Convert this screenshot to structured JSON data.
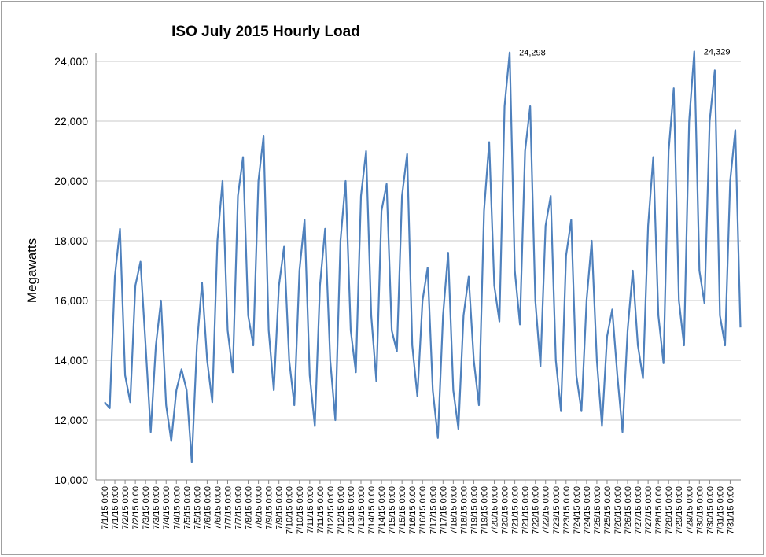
{
  "chart_data": {
    "type": "line",
    "title": "ISO July 2015 Hourly Load",
    "y_label": "Megawatts",
    "categories": [
      "7/1/15 0:00",
      null,
      "7/1/15 0:00",
      null,
      "7/2/15 0:00",
      null,
      "7/2/15 0:00",
      null,
      "7/3/15 0:00",
      null,
      "7/3/15 0:00",
      null,
      "7/4/15 0:00",
      null,
      "7/4/15 0:00",
      null,
      "7/5/15 0:00",
      null,
      "7/5/15 0:00",
      null,
      "7/6/15 0:00",
      null,
      "7/6/15 0:00",
      null,
      "7/7/15 0:00",
      null,
      "7/7/15 0:00",
      null,
      "7/8/15 0:00",
      null,
      "7/8/15 0:00",
      null,
      "7/9/15 0:00",
      null,
      "7/9/15 0:00",
      null,
      "7/10/15 0:00",
      null,
      "7/10/15 0:00",
      null,
      "7/11/15 0:00",
      null,
      "7/11/15 0:00",
      null,
      "7/12/15 0:00",
      null,
      "7/12/15 0:00",
      null,
      "7/13/15 0:00",
      null,
      "7/13/15 0:00",
      null,
      "7/14/15 0:00",
      null,
      "7/14/15 0:00",
      null,
      "7/15/15 0:00",
      null,
      "7/15/15 0:00",
      null,
      "7/16/15 0:00",
      null,
      "7/16/15 0:00",
      null,
      "7/17/15 0:00",
      null,
      "7/17/15 0:00",
      null,
      "7/18/15 0:00",
      null,
      "7/18/15 0:00",
      null,
      "7/19/15 0:00",
      null,
      "7/19/15 0:00",
      null,
      "7/20/15 0:00",
      null,
      "7/20/15 0:00",
      null,
      "7/21/15 0:00",
      null,
      "7/21/15 0:00",
      null,
      "7/22/15 0:00",
      null,
      "7/22/15 0:00",
      null,
      "7/23/15 0:00",
      null,
      "7/23/15 0:00",
      null,
      "7/24/15 0:00",
      null,
      "7/24/15 0:00",
      null,
      "7/25/15 0:00",
      null,
      "7/25/15 0:00",
      null,
      "7/26/15 0:00",
      null,
      "7/26/15 0:00",
      null,
      "7/27/15 0:00",
      null,
      "7/27/15 0:00",
      null,
      "7/28/15 0:00",
      null,
      "7/28/15 0:00",
      null,
      "7/29/15 0:00",
      null,
      "7/29/15 0:00",
      null,
      "7/30/15 0:00",
      null,
      "7/30/15 0:00",
      null,
      "7/31/15 0:00",
      null,
      "7/31/15 0:00",
      null,
      null
    ],
    "series": [
      {
        "name": "Load",
        "color": "#4f81bd",
        "values": [
          12600,
          12400,
          16800,
          18400,
          13500,
          12600,
          16500,
          17300,
          14500,
          11600,
          14500,
          16000,
          12500,
          11300,
          13000,
          13700,
          13000,
          10600,
          14500,
          16600,
          14000,
          12600,
          18000,
          20000,
          15000,
          13600,
          19500,
          20800,
          15500,
          14500,
          20000,
          21500,
          15000,
          13000,
          16500,
          17800,
          14000,
          12500,
          17000,
          18700,
          13500,
          11800,
          16500,
          18400,
          14000,
          12000,
          18000,
          20000,
          15000,
          13600,
          19500,
          21000,
          15500,
          13300,
          19000,
          19900,
          15000,
          14300,
          19500,
          20900,
          14500,
          12800,
          16000,
          17100,
          13000,
          11400,
          15500,
          17600,
          13000,
          11700,
          15500,
          16800,
          14000,
          12500,
          19000,
          21300,
          16500,
          15300,
          22500,
          24298,
          17000,
          15200,
          21000,
          22500,
          16000,
          13800,
          18500,
          19500,
          14000,
          12300,
          17500,
          18700,
          13500,
          12300,
          16000,
          18000,
          14000,
          11800,
          14800,
          15700,
          13500,
          11600,
          15000,
          17000,
          14500,
          13400,
          18500,
          20800,
          15500,
          13900,
          21000,
          23100,
          16000,
          14500,
          22000,
          24329,
          17000,
          15900,
          22000,
          23700,
          15500,
          14500,
          20000,
          21700,
          15100
        ],
        "value_labels": [
          null,
          null,
          null,
          null,
          null,
          null,
          null,
          null,
          null,
          null,
          null,
          null,
          null,
          null,
          null,
          null,
          null,
          null,
          null,
          null,
          null,
          null,
          null,
          null,
          null,
          null,
          null,
          null,
          null,
          null,
          null,
          null,
          null,
          null,
          null,
          null,
          null,
          null,
          null,
          null,
          null,
          null,
          null,
          null,
          null,
          null,
          null,
          null,
          null,
          null,
          null,
          null,
          null,
          null,
          null,
          null,
          null,
          null,
          null,
          null,
          null,
          null,
          null,
          null,
          null,
          null,
          null,
          null,
          null,
          null,
          null,
          null,
          null,
          null,
          null,
          null,
          null,
          null,
          null,
          "24,298",
          null,
          null,
          null,
          null,
          null,
          null,
          null,
          null,
          null,
          null,
          null,
          null,
          null,
          null,
          null,
          null,
          null,
          null,
          null,
          null,
          null,
          null,
          null,
          null,
          null,
          null,
          null,
          null,
          null,
          null,
          null,
          null,
          null,
          null,
          null,
          "24,329",
          null,
          null,
          null,
          null,
          null,
          null,
          null,
          null,
          null
        ]
      }
    ],
    "ylim": [
      10000,
      24000
    ],
    "yticks": [
      {
        "value": 10000,
        "label": "10,000"
      },
      {
        "value": 12000,
        "label": "12,000"
      },
      {
        "value": 14000,
        "label": "14,000"
      },
      {
        "value": 16000,
        "label": "16,000"
      },
      {
        "value": 18000,
        "label": "18,000"
      },
      {
        "value": 20000,
        "label": "20,000"
      },
      {
        "value": 22000,
        "label": "22,000"
      },
      {
        "value": 24000,
        "label": "24,000"
      }
    ],
    "grid": true
  }
}
